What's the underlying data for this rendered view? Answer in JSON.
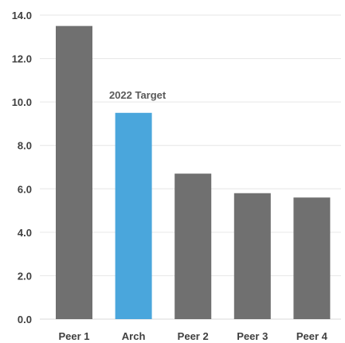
{
  "chart_data": {
    "type": "bar",
    "categories": [
      "Peer 1",
      "Arch",
      "Peer 2",
      "Peer 3",
      "Peer 4"
    ],
    "values": [
      13.5,
      9.5,
      6.7,
      5.8,
      5.6
    ],
    "ylim": [
      0,
      14
    ],
    "yticks": [
      "0.0",
      "2.0",
      "4.0",
      "6.0",
      "8.0",
      "10.0",
      "12.0",
      "14.0"
    ],
    "ytick_values": [
      0,
      2,
      4,
      6,
      8,
      10,
      12,
      14
    ],
    "grid": true,
    "highlight_index": 1,
    "annotation": {
      "text": "2022 Target",
      "category_index": 1
    },
    "colors": {
      "default_bar": "#707070",
      "highlight_bar": "#4aa6dc"
    }
  }
}
